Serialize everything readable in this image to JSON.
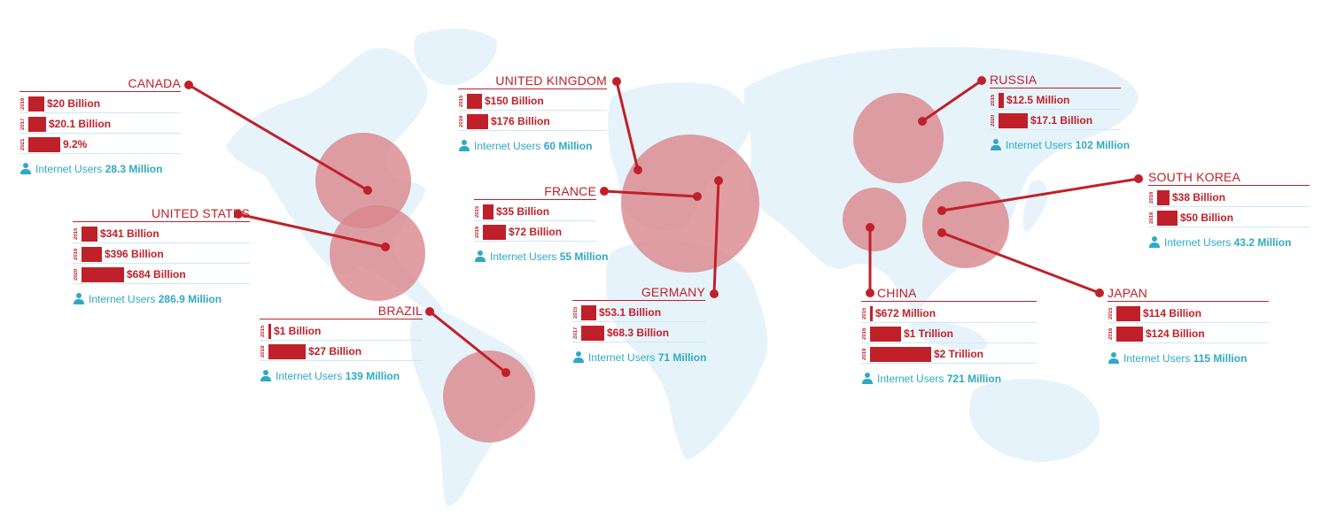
{
  "colors": {
    "accent": "#c0202a",
    "bubble": "#d9868c",
    "map": "#e6f3fa",
    "users": "#2eaac4"
  },
  "icons": {
    "users": "person-icon"
  },
  "countries": {
    "canada": {
      "name": "CANADA",
      "bars": [
        {
          "year": "2016",
          "label": "$20 Billion",
          "level": 0.06
        },
        {
          "year": "2017",
          "label": "$20.1 Billion",
          "level": 0.065
        },
        {
          "year": "2021",
          "label": "9.2%",
          "level": 0.12
        }
      ],
      "users_label": "Internet Users",
      "users_value": "28.3 Million"
    },
    "united_states": {
      "name": "UNITED STATES",
      "bars": [
        {
          "year": "2015",
          "label": "$341 Billion",
          "level": 0.06
        },
        {
          "year": "2016",
          "label": "$396 Billion",
          "level": 0.075
        },
        {
          "year": "2020",
          "label": "$684 Billion",
          "level": 0.16
        }
      ],
      "users_label": "Internet Users",
      "users_value": "286.9 Million"
    },
    "brazil": {
      "name": "BRAZIL",
      "bars": [
        {
          "year": "2015",
          "label": "$1 Billion",
          "level": 0.005
        },
        {
          "year": "2019",
          "label": "$27 Billion",
          "level": 0.14
        }
      ],
      "users_label": "Internet Users",
      "users_value": "139 Million"
    },
    "united_kingdom": {
      "name": "UNITED KINGDOM",
      "bars": [
        {
          "year": "2015",
          "label": "$150 Billion",
          "level": 0.055
        },
        {
          "year": "2016",
          "label": "$176 Billion",
          "level": 0.08
        }
      ],
      "users_label": "Internet Users",
      "users_value": "60 Million"
    },
    "france": {
      "name": "FRANCE",
      "bars": [
        {
          "year": "2015",
          "label": "$35 Billion",
          "level": 0.04
        },
        {
          "year": "2016",
          "label": "$72 Billion",
          "level": 0.085
        }
      ],
      "users_label": "Internet Users",
      "users_value": "55 Million"
    },
    "germany": {
      "name": "GERMANY",
      "bars": [
        {
          "year": "2015",
          "label": "$53.1 Billion",
          "level": 0.055
        },
        {
          "year": "2017",
          "label": "$68.3 Billion",
          "level": 0.085
        }
      ],
      "users_label": "Internet Users",
      "users_value": "71 Million"
    },
    "russia": {
      "name": "RUSSIA",
      "bars": [
        {
          "year": "2015",
          "label": "$12.5 Million",
          "level": 0.02
        },
        {
          "year": "2020",
          "label": "$17.1 Billion",
          "level": 0.11
        }
      ],
      "users_label": "Internet Users",
      "users_value": "102 Million"
    },
    "south_korea": {
      "name": "SOUTH KOREA",
      "bars": [
        {
          "year": "2016",
          "label": "$38 Billion",
          "level": 0.045
        },
        {
          "year": "2018",
          "label": "$50 Billion",
          "level": 0.075
        }
      ],
      "users_label": "Internet Users",
      "users_value": "43.2 Million"
    },
    "china": {
      "name": "CHINA",
      "bars": [
        {
          "year": "2015",
          "label": "$672 Million",
          "level": 0.005
        },
        {
          "year": "2016",
          "label": "$1 Trillion",
          "level": 0.115
        },
        {
          "year": "2019",
          "label": "$2 Trillion",
          "level": 0.23
        }
      ],
      "users_label": "Internet Users",
      "users_value": "721 Million"
    },
    "japan": {
      "name": "JAPAN",
      "bars": [
        {
          "year": "2015",
          "label": "$114 Billion",
          "level": 0.09
        },
        {
          "year": "2016",
          "label": "$124 Billion",
          "level": 0.1
        }
      ],
      "users_label": "Internet Users",
      "users_value": "115 Million"
    }
  }
}
